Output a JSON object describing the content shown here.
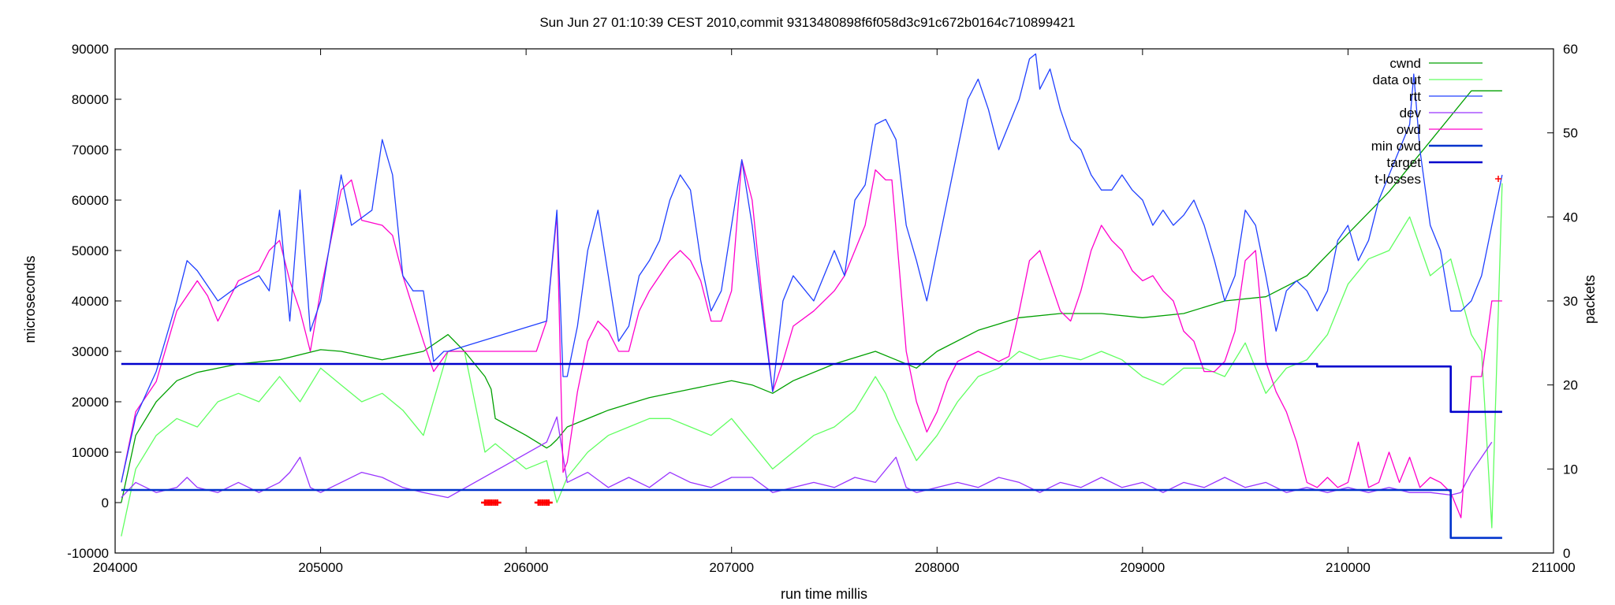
{
  "chart_data": {
    "type": "line",
    "title": "Sun Jun 27 01:10:39 CEST 2010,commit 9313480898f6f058d3c91c672b0164c710899421",
    "xlabel": "run time millis",
    "ylabel": "microseconds",
    "y2label": "packets",
    "xlim": [
      204000,
      211000
    ],
    "ylim": [
      -10000,
      90000
    ],
    "y2lim": [
      0,
      60
    ],
    "x_ticks": [
      "204000",
      "205000",
      "206000",
      "207000",
      "208000",
      "209000",
      "210000",
      "211000"
    ],
    "y_ticks": [
      "-10000",
      "0",
      "10000",
      "20000",
      "30000",
      "40000",
      "50000",
      "60000",
      "70000",
      "80000",
      "90000"
    ],
    "y2_ticks": [
      "0",
      "10",
      "20",
      "30",
      "40",
      "50",
      "60"
    ],
    "grid": false,
    "legend_position": "top-right",
    "series": [
      {
        "name": "cwnd",
        "axis": "y2",
        "color": "#00a000",
        "x": [
          204030,
          204100,
          204200,
          204300,
          204400,
          204600,
          204800,
          205000,
          205100,
          205300,
          205500,
          205620,
          205700,
          205800,
          205830,
          205850,
          206000,
          206100,
          206120,
          206150,
          206200,
          206400,
          206600,
          206800,
          207000,
          207100,
          207200,
          207300,
          207500,
          207700,
          207800,
          207900,
          208000,
          208200,
          208400,
          208600,
          208800,
          209000,
          209200,
          209400,
          209600,
          209800,
          210000,
          210200,
          210400,
          210600,
          210750
        ],
        "y": [
          6,
          14,
          18,
          20.5,
          21.5,
          22.5,
          23,
          24.2,
          24,
          23,
          24,
          26,
          24,
          21,
          19.5,
          16,
          14,
          12.5,
          12.8,
          13.5,
          15,
          17,
          18.5,
          19.5,
          20.5,
          20,
          19,
          20.5,
          22.5,
          24,
          23,
          22,
          24,
          26.5,
          28,
          28.5,
          28.5,
          28,
          28.5,
          30,
          30.5,
          33,
          38,
          43,
          49,
          55,
          55
        ]
      },
      {
        "name": "data out",
        "axis": "y2",
        "color": "#60ff60",
        "x": [
          204030,
          204100,
          204200,
          204300,
          204400,
          204500,
          204600,
          204700,
          204800,
          204900,
          205000,
          205100,
          205200,
          205300,
          205400,
          205500,
          205620,
          205700,
          205800,
          205850,
          206000,
          206100,
          206150,
          206200,
          206300,
          206400,
          206500,
          206600,
          206700,
          206800,
          206900,
          207000,
          207100,
          207200,
          207300,
          207400,
          207500,
          207600,
          207700,
          207750,
          207800,
          207900,
          208000,
          208100,
          208200,
          208300,
          208400,
          208500,
          208600,
          208700,
          208800,
          208900,
          209000,
          209100,
          209200,
          209300,
          209400,
          209500,
          209600,
          209700,
          209800,
          209900,
          210000,
          210100,
          210200,
          210300,
          210400,
          210500,
          210600,
          210650,
          210700,
          210750
        ],
        "y": [
          2,
          10,
          14,
          16,
          15,
          18,
          19,
          18,
          21,
          18,
          22,
          20,
          18,
          19,
          17,
          14,
          24,
          24,
          12,
          13,
          10,
          11,
          6,
          9,
          12,
          14,
          15,
          16,
          16,
          15,
          14,
          16,
          13,
          10,
          12,
          14,
          15,
          17,
          21,
          19,
          16,
          11,
          14,
          18,
          21,
          22,
          24,
          23,
          23.5,
          23,
          24,
          23,
          21,
          20,
          22,
          22,
          21,
          25,
          19,
          22,
          23,
          26,
          32,
          35,
          36,
          40,
          33,
          35,
          26,
          24,
          3,
          44
        ]
      },
      {
        "name": "rtt",
        "axis": "y",
        "color": "#2040ff",
        "x": [
          204030,
          204100,
          204200,
          204300,
          204350,
          204400,
          204500,
          204600,
          204700,
          204750,
          204800,
          204850,
          204900,
          204950,
          205000,
          205100,
          205150,
          205250,
          205300,
          205350,
          205400,
          205450,
          205500,
          205550,
          205600,
          205620,
          206100,
          206150,
          206180,
          206200,
          206250,
          206300,
          206350,
          206400,
          206450,
          206500,
          206550,
          206600,
          206650,
          206700,
          206750,
          206800,
          206850,
          206900,
          206950,
          207000,
          207050,
          207100,
          207150,
          207200,
          207250,
          207300,
          207400,
          207500,
          207550,
          207600,
          207650,
          207700,
          207750,
          207800,
          207850,
          207900,
          207950,
          208000,
          208050,
          208100,
          208150,
          208200,
          208250,
          208300,
          208350,
          208400,
          208450,
          208480,
          208500,
          208550,
          208600,
          208650,
          208700,
          208750,
          208800,
          208850,
          208900,
          208950,
          209000,
          209050,
          209100,
          209150,
          209200,
          209250,
          209300,
          209350,
          209400,
          209450,
          209500,
          209550,
          209600,
          209650,
          209700,
          209750,
          209800,
          209850,
          209900,
          209950,
          210000,
          210050,
          210100,
          210150,
          210200,
          210250,
          210300,
          210320,
          210350,
          210400,
          210450,
          210500,
          210550,
          210600,
          210650,
          210700,
          210750
        ],
        "y": [
          4000,
          17000,
          26000,
          40000,
          48000,
          46000,
          40000,
          43000,
          45000,
          42000,
          58000,
          36000,
          62000,
          34000,
          40000,
          65000,
          55000,
          58000,
          72000,
          65000,
          45000,
          42000,
          42000,
          28000,
          30000,
          30000,
          36000,
          58000,
          25000,
          25000,
          35000,
          50000,
          58000,
          45000,
          32000,
          35000,
          45000,
          48000,
          52000,
          60000,
          65000,
          62000,
          48000,
          38000,
          42000,
          55000,
          68000,
          55000,
          38000,
          22000,
          40000,
          45000,
          40000,
          50000,
          45000,
          60000,
          63000,
          75000,
          76000,
          72000,
          55000,
          48000,
          40000,
          50000,
          60000,
          70000,
          80000,
          84000,
          78000,
          70000,
          75000,
          80000,
          88000,
          89000,
          82000,
          86000,
          78000,
          72000,
          70000,
          65000,
          62000,
          62000,
          65000,
          62000,
          60000,
          55000,
          58000,
          55000,
          57000,
          60000,
          55000,
          48000,
          40000,
          45000,
          58000,
          55000,
          45000,
          34000,
          42000,
          44000,
          42000,
          38000,
          42000,
          52000,
          55000,
          48000,
          52000,
          60000,
          65000,
          70000,
          75000,
          85000,
          70000,
          55000,
          50000,
          38000,
          38000,
          40000,
          45000,
          55000,
          65000
        ],
        "step": false
      },
      {
        "name": "dev",
        "axis": "y",
        "color": "#9933ff",
        "x": [
          204030,
          204100,
          204200,
          204300,
          204350,
          204400,
          204500,
          204600,
          204700,
          204800,
          204850,
          204900,
          204950,
          205000,
          205100,
          205200,
          205300,
          205400,
          205500,
          205620,
          206100,
          206150,
          206200,
          206300,
          206400,
          206500,
          206600,
          206700,
          206800,
          206900,
          207000,
          207100,
          207200,
          207300,
          207400,
          207500,
          207600,
          207700,
          207800,
          207850,
          207900,
          208000,
          208100,
          208200,
          208300,
          208400,
          208500,
          208600,
          208700,
          208800,
          208900,
          209000,
          209100,
          209200,
          209300,
          209400,
          209500,
          209600,
          209700,
          209800,
          209900,
          210000,
          210100,
          210200,
          210300,
          210400,
          210500,
          210550,
          210600,
          210700
        ],
        "y": [
          1000,
          4000,
          2000,
          3000,
          5000,
          3000,
          2000,
          4000,
          2000,
          4000,
          6000,
          9000,
          3000,
          2000,
          4000,
          6000,
          5000,
          3000,
          2000,
          1000,
          12000,
          17000,
          4000,
          6000,
          3000,
          5000,
          3000,
          6000,
          4000,
          3000,
          5000,
          5000,
          2000,
          3000,
          4000,
          3000,
          5000,
          4000,
          9000,
          3000,
          2000,
          3000,
          4000,
          3000,
          5000,
          4000,
          2000,
          4000,
          3000,
          5000,
          3000,
          4000,
          2000,
          4000,
          3000,
          5000,
          3000,
          4000,
          2000,
          3000,
          2000,
          3000,
          2000,
          3000,
          2000,
          2000,
          1500,
          2000,
          6000,
          12000
        ]
      },
      {
        "name": "owd",
        "axis": "y",
        "color": "#ff00cc",
        "x": [
          204030,
          204100,
          204200,
          204300,
          204400,
          204450,
          204500,
          204600,
          204700,
          204750,
          204800,
          204850,
          204900,
          204950,
          205000,
          205100,
          205150,
          205200,
          205300,
          205350,
          205400,
          205500,
          205550,
          205620,
          206050,
          206100,
          206150,
          206180,
          206200,
          206250,
          206300,
          206350,
          206400,
          206450,
          206500,
          206550,
          206600,
          206700,
          206750,
          206800,
          206850,
          206900,
          206950,
          207000,
          207050,
          207100,
          207150,
          207200,
          207250,
          207300,
          207400,
          207500,
          207550,
          207600,
          207650,
          207700,
          207750,
          207780,
          207850,
          207900,
          207950,
          208000,
          208050,
          208100,
          208200,
          208300,
          208350,
          208400,
          208450,
          208500,
          208550,
          208600,
          208650,
          208700,
          208750,
          208800,
          208850,
          208900,
          208950,
          209000,
          209050,
          209100,
          209150,
          209200,
          209250,
          209300,
          209350,
          209400,
          209450,
          209500,
          209550,
          209600,
          209650,
          209700,
          209750,
          209800,
          209850,
          209900,
          209950,
          210000,
          210050,
          210100,
          210150,
          210200,
          210250,
          210300,
          210350,
          210400,
          210450,
          210500,
          210550,
          210600,
          210650,
          210700,
          210750
        ],
        "y": [
          4000,
          18000,
          24000,
          38000,
          44000,
          41000,
          36000,
          44000,
          46000,
          50000,
          52000,
          44000,
          38000,
          30000,
          42000,
          62000,
          64000,
          56000,
          55000,
          53000,
          45000,
          32000,
          26000,
          30000,
          30000,
          36000,
          57000,
          6000,
          8000,
          22000,
          32000,
          36000,
          34000,
          30000,
          30000,
          38000,
          42000,
          48000,
          50000,
          48000,
          44000,
          36000,
          36000,
          42000,
          68000,
          60000,
          40000,
          22000,
          28000,
          35000,
          38000,
          42000,
          45000,
          50000,
          55000,
          66000,
          64000,
          64000,
          30000,
          20000,
          14000,
          18000,
          24000,
          28000,
          30000,
          28000,
          29000,
          38000,
          48000,
          50000,
          44000,
          38000,
          36000,
          42000,
          50000,
          55000,
          52000,
          50000,
          46000,
          44000,
          45000,
          42000,
          40000,
          34000,
          32000,
          26000,
          26000,
          28000,
          34000,
          48000,
          50000,
          28000,
          22000,
          18000,
          12000,
          4000,
          3000,
          5000,
          3000,
          4000,
          12000,
          3000,
          4000,
          10000,
          4000,
          9000,
          3000,
          5000,
          4000,
          2000,
          -3000,
          25000,
          25000,
          40000,
          40000
        ]
      },
      {
        "name": "min owd",
        "axis": "y",
        "color": "#0033cc",
        "x": [
          204030,
          210500,
          210500,
          210750
        ],
        "y": [
          2500,
          2500,
          -7000,
          -7000
        ],
        "step": true
      },
      {
        "name": "target",
        "axis": "y",
        "color": "#0000cc",
        "x": [
          204030,
          209850,
          209850,
          210500,
          210500,
          210750
        ],
        "y": [
          27500,
          27500,
          27000,
          27000,
          18000,
          18000
        ],
        "step": true
      },
      {
        "name": "t-losses",
        "axis": "y",
        "color": "#ff0000",
        "marker": "+",
        "x": [
          205800,
          205810,
          205820,
          205830,
          205840,
          205850,
          205860,
          206060,
          206070,
          206080,
          206090,
          206100,
          206110
        ],
        "y": [
          0,
          0,
          0,
          0,
          0,
          0,
          0,
          0,
          0,
          0,
          0,
          0,
          0
        ]
      }
    ]
  }
}
